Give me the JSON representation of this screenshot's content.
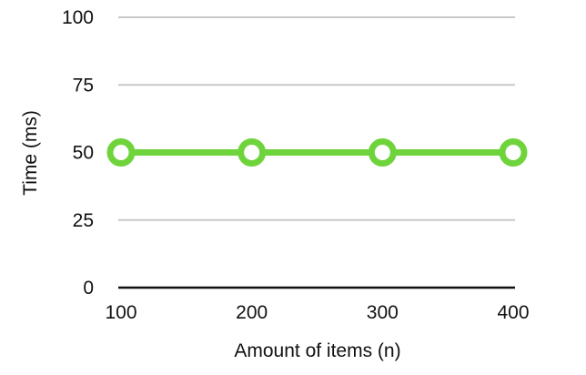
{
  "chart_data": {
    "type": "line",
    "xlabel": "Amount of items (n)",
    "ylabel": "Time (ms)",
    "x": [
      100,
      200,
      300,
      400
    ],
    "x_tick_labels": [
      "100",
      "200",
      "300",
      "400"
    ],
    "y_ticks": [
      0,
      25,
      50,
      75,
      100
    ],
    "y_tick_labels": [
      "0",
      "25",
      "50",
      "75",
      "100"
    ],
    "ylim": [
      0,
      100
    ],
    "grid": true,
    "legend": "none",
    "series": [
      {
        "values": [
          50,
          50,
          50,
          50
        ],
        "color": "#6fd43c"
      }
    ]
  }
}
